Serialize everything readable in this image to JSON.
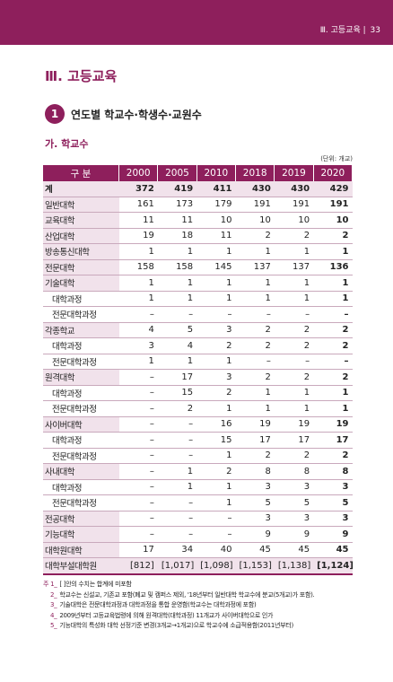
{
  "header": {
    "chapter": "Ⅲ. 고등교육",
    "page": "33"
  },
  "title": "Ⅲ. 고등교육",
  "section": {
    "number": "1",
    "title": "연도별 학교수·학생수·교원수"
  },
  "subsection": "가. 학교수",
  "table": {
    "unit": "(단위: 개교)",
    "header": [
      "구 분",
      "2000",
      "2005",
      "2010",
      "2018",
      "2019",
      "2020"
    ],
    "rows": [
      [
        "계",
        "372",
        "419",
        "411",
        "430",
        "430",
        "429"
      ],
      [
        "일반대학",
        "161",
        "173",
        "179",
        "191",
        "191",
        "191"
      ],
      [
        "교육대학",
        "11",
        "11",
        "10",
        "10",
        "10",
        "10"
      ],
      [
        "산업대학",
        "19",
        "18",
        "11",
        "2",
        "2",
        "2"
      ],
      [
        "방송통신대학",
        "1",
        "1",
        "1",
        "1",
        "1",
        "1"
      ],
      [
        "전문대학",
        "158",
        "158",
        "145",
        "137",
        "137",
        "136"
      ],
      [
        "기술대학",
        "1",
        "1",
        "1",
        "1",
        "1",
        "1"
      ],
      [
        "대학과정",
        "1",
        "1",
        "1",
        "1",
        "1",
        "1"
      ],
      [
        "전문대학과정",
        "–",
        "–",
        "–",
        "–",
        "–",
        "–"
      ],
      [
        "각종학교",
        "4",
        "5",
        "3",
        "2",
        "2",
        "2"
      ],
      [
        "대학과정",
        "3",
        "4",
        "2",
        "2",
        "2",
        "2"
      ],
      [
        "전문대학과정",
        "1",
        "1",
        "1",
        "–",
        "–",
        "–"
      ],
      [
        "원격대학",
        "–",
        "17",
        "3",
        "2",
        "2",
        "2"
      ],
      [
        "대학과정",
        "–",
        "15",
        "2",
        "1",
        "1",
        "1"
      ],
      [
        "전문대학과정",
        "–",
        "2",
        "1",
        "1",
        "1",
        "1"
      ],
      [
        "사이버대학",
        "–",
        "–",
        "16",
        "19",
        "19",
        "19"
      ],
      [
        "대학과정",
        "–",
        "–",
        "15",
        "17",
        "17",
        "17"
      ],
      [
        "전문대학과정",
        "–",
        "–",
        "1",
        "2",
        "2",
        "2"
      ],
      [
        "사내대학",
        "–",
        "1",
        "2",
        "8",
        "8",
        "8"
      ],
      [
        "대학과정",
        "–",
        "1",
        "1",
        "3",
        "3",
        "3"
      ],
      [
        "전문대학과정",
        "–",
        "–",
        "1",
        "5",
        "5",
        "5"
      ],
      [
        "전공대학",
        "–",
        "–",
        "–",
        "3",
        "3",
        "3"
      ],
      [
        "기능대학",
        "–",
        "–",
        "–",
        "9",
        "9",
        "9"
      ],
      [
        "대학원대학",
        "17",
        "34",
        "40",
        "45",
        "45",
        "45"
      ],
      [
        "대학부설대학원",
        "[812]",
        "[1,017]",
        "[1,098]",
        "[1,153]",
        "[1,138]",
        "[1,124]"
      ]
    ]
  },
  "notes": [
    {
      "label": "주 1_",
      "text": "[ ]안의 수치는 합계에 미포함"
    },
    {
      "label": "2_",
      "text": "학교수는 신설교, 기존교 포함(폐교 및 캠퍼스 제외, '18년부터 일반대학 학교수에 분교(5개교)가 포함)."
    },
    {
      "label": "3_",
      "text": "기술대학은 전문대학과정과 대학과정을 통합 운영함(학교수는 대학과정에 포함)"
    },
    {
      "label": "4_",
      "text": "2009년부터 고등교육법령에 의해 원격대학(대학과정) 11개교가 사이버대학으로 인가"
    },
    {
      "label": "5_",
      "text": "기능대학의 특성화 대학 선정기준 변경(3개교→1개교)으로 학교수에 소급적용함(2011년부터)"
    }
  ]
}
